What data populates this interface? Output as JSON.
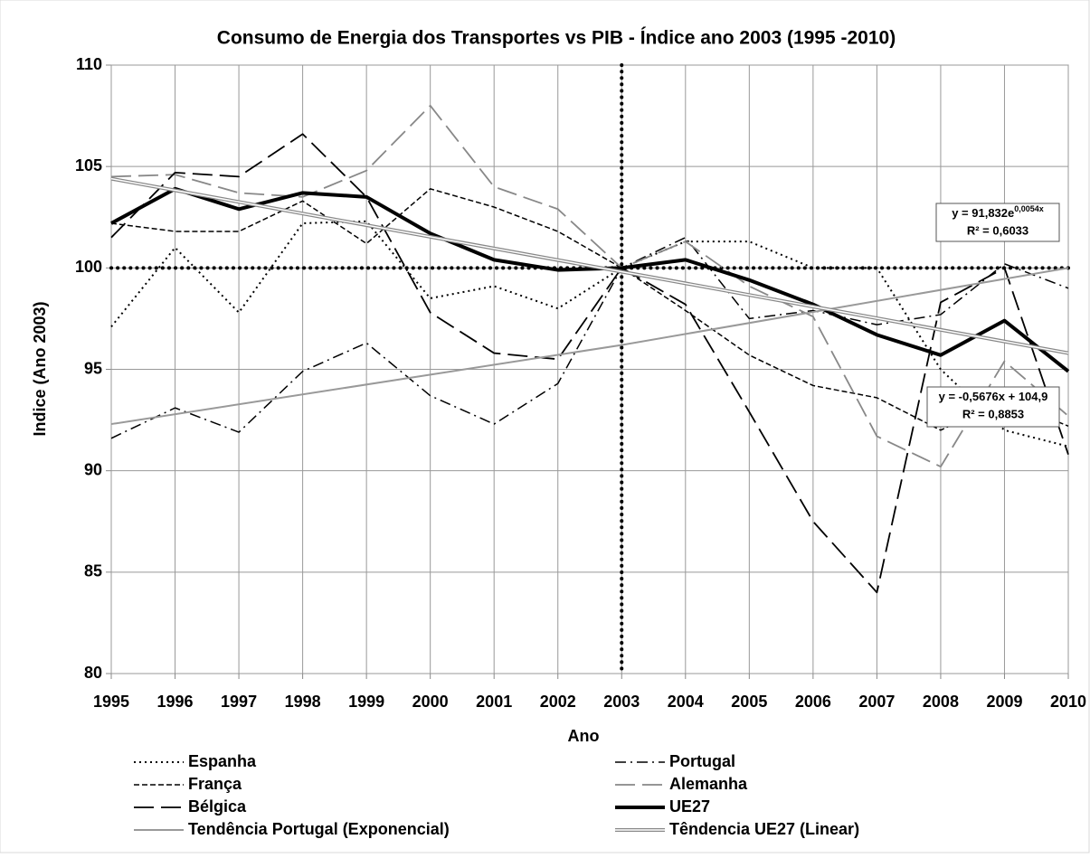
{
  "chart_data": {
    "type": "line",
    "title": "Consumo de Energia dos Transportes vs PIB - Índice ano 2003 (1995 -2010)",
    "xlabel": "Ano",
    "ylabel": "Indice (Ano 2003)",
    "x": [
      1995,
      1996,
      1997,
      1998,
      1999,
      2000,
      2001,
      2002,
      2003,
      2004,
      2005,
      2006,
      2007,
      2008,
      2009,
      2010
    ],
    "xlim": [
      1995,
      2010
    ],
    "xticks": [
      1995,
      1996,
      1997,
      1998,
      1999,
      2000,
      2001,
      2002,
      2003,
      2004,
      2005,
      2006,
      2007,
      2008,
      2009,
      2010
    ],
    "ylim": [
      80,
      110
    ],
    "yticks": [
      80,
      85,
      90,
      95,
      100,
      105,
      110
    ],
    "grid": true,
    "reference_lines": {
      "x": 2003,
      "y": 100
    },
    "series": [
      {
        "name": "Espanha",
        "color": "#000000",
        "dash": "dotted",
        "width": 2,
        "values": [
          97.1,
          101.0,
          97.8,
          102.2,
          102.3,
          98.5,
          99.1,
          98.0,
          100,
          101.3,
          101.3,
          100.0,
          100.0,
          95.0,
          92.0,
          91.2
        ]
      },
      {
        "name": "Portugal",
        "color": "#000000",
        "dash": "dashdot",
        "width": 1.5,
        "values": [
          91.6,
          93.1,
          91.9,
          94.9,
          96.3,
          93.7,
          92.3,
          94.3,
          100,
          101.5,
          97.5,
          97.9,
          97.2,
          97.7,
          100.2,
          99.0
        ]
      },
      {
        "name": "França",
        "color": "#000000",
        "dash": "dashed",
        "width": 1.5,
        "values": [
          102.2,
          101.8,
          101.8,
          103.3,
          101.2,
          103.9,
          103.0,
          101.8,
          100,
          97.9,
          95.7,
          94.2,
          93.6,
          92.0,
          93.5,
          92.2
        ]
      },
      {
        "name": "Alemanha",
        "color": "#888888",
        "dash": "longdash",
        "width": 1.8,
        "values": [
          104.5,
          104.6,
          103.7,
          103.5,
          104.8,
          108.0,
          104.0,
          102.9,
          100,
          101.3,
          99.1,
          97.6,
          91.7,
          90.2,
          95.4,
          92.7
        ]
      },
      {
        "name": "Bélgica",
        "color": "#000000",
        "dash": "longdash",
        "width": 1.8,
        "values": [
          101.5,
          104.7,
          104.5,
          106.6,
          103.5,
          97.8,
          95.8,
          95.5,
          100,
          98.2,
          92.9,
          87.5,
          84.0,
          98.3,
          100.0,
          90.8
        ]
      },
      {
        "name": "UE27",
        "color": "#000000",
        "dash": "solid",
        "width": 4,
        "values": [
          102.2,
          103.9,
          102.9,
          103.7,
          103.5,
          101.7,
          100.4,
          99.9,
          100,
          100.4,
          99.4,
          98.2,
          96.7,
          95.7,
          97.4,
          94.9
        ]
      },
      {
        "name": "Tendência Portugal (Exponencial)",
        "color": "#999999",
        "dash": "solid",
        "width": 2,
        "x": [
          1995,
          2003,
          2010
        ],
        "values": [
          92.3,
          96.2,
          100.0
        ]
      },
      {
        "name": "Têndencia UE27 (Linear)",
        "color": "#888888",
        "dash": "double",
        "width": 4,
        "x": [
          1995,
          2010
        ],
        "values": [
          104.4,
          95.8
        ]
      }
    ],
    "annotations": [
      {
        "text": "y = 91,832e",
        "sup": "0,0054x",
        "r2": "R² = 0,6033"
      },
      {
        "text": "y = -0,5676x + 104,9",
        "r2": "R² = 0,8853"
      }
    ]
  }
}
